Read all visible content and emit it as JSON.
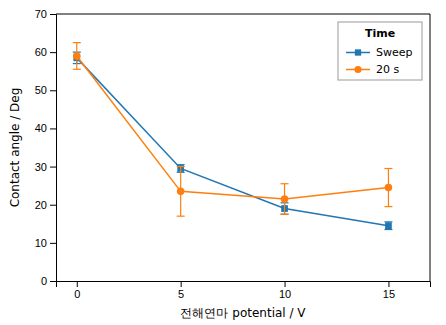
{
  "chart_data": {
    "type": "line",
    "x": [
      0,
      5,
      10,
      15
    ],
    "series": [
      {
        "name": "Sweep",
        "values": [
          58.5,
          29.5,
          19.0,
          14.5
        ],
        "errors": [
          1.5,
          1.0,
          1.5,
          1.0
        ],
        "marker": "square"
      },
      {
        "name": "20 s",
        "values": [
          59.0,
          23.5,
          21.5,
          24.5
        ],
        "errors": [
          3.5,
          6.5,
          4.0,
          5.0
        ],
        "marker": "circle"
      }
    ],
    "xlabel": "전해연마 potential / V",
    "ylabel": "Contact angle / Deg",
    "legend_title": "Time",
    "legend": "upper-right",
    "xlim": [
      -1,
      17
    ],
    "ylim": [
      0,
      70
    ],
    "xticks": [
      0,
      5,
      10,
      15
    ],
    "yticks": [
      0,
      10,
      20,
      30,
      40,
      50,
      60,
      70
    ],
    "grid": false
  }
}
